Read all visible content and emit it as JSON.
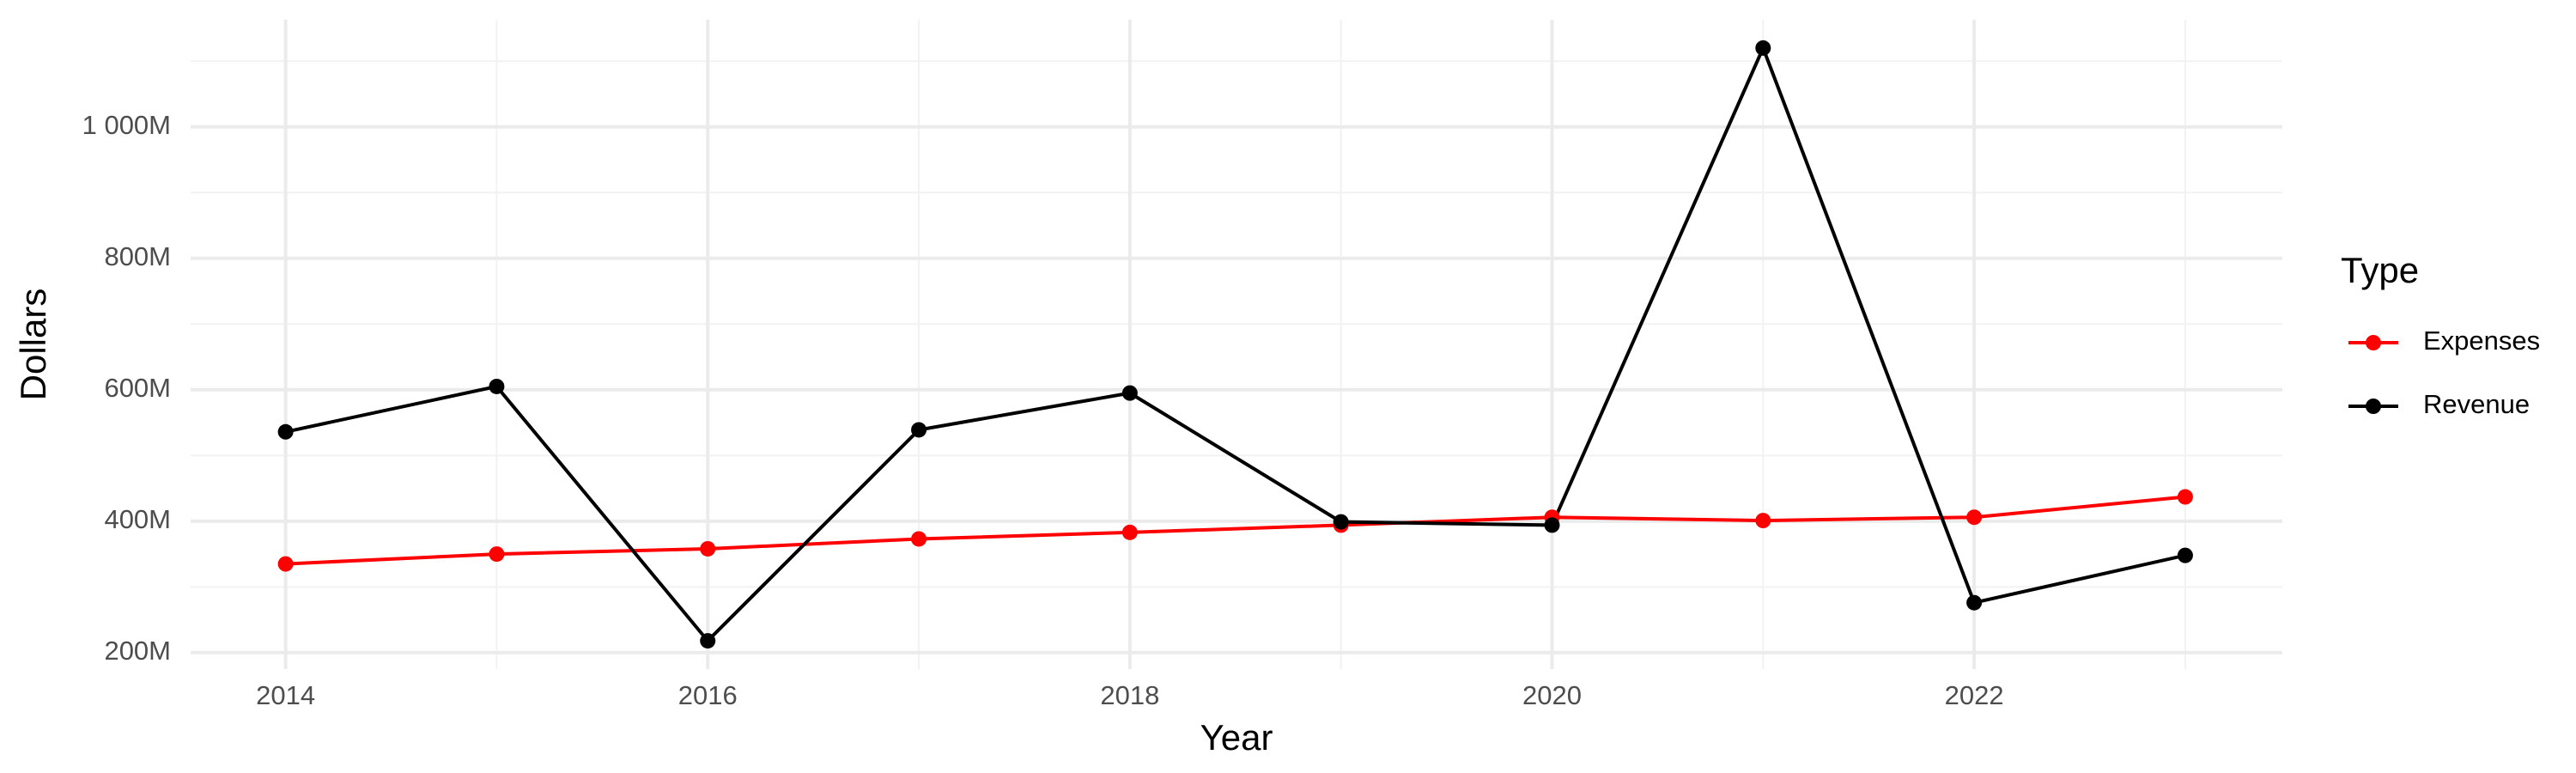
{
  "chart_data": {
    "type": "line",
    "x_label": "Year",
    "y_label": "Dollars",
    "legend_title": "Type",
    "x": [
      2014,
      2015,
      2016,
      2017,
      2018,
      2019,
      2020,
      2021,
      2022,
      2023
    ],
    "series": [
      {
        "name": "Expenses",
        "color": "#ff0000",
        "values": [
          335000000,
          350000000,
          358000000,
          373000000,
          383000000,
          394000000,
          406000000,
          401000000,
          406000000,
          437000000
        ]
      },
      {
        "name": "Revenue",
        "color": "#000000",
        "values": [
          536000000,
          605000000,
          218000000,
          539000000,
          595000000,
          399000000,
          394000000,
          1120000000,
          276000000,
          348000000
        ]
      }
    ],
    "xlim": [
      2013.55,
      2023.46
    ],
    "xticks": [
      2014,
      2016,
      2018,
      2020,
      2022
    ],
    "ylim": [
      175000000,
      1163000000
    ],
    "yticks": [
      {
        "value": 200000000,
        "label": "200M"
      },
      {
        "value": 400000000,
        "label": "400M"
      },
      {
        "value": 600000000,
        "label": "600M"
      },
      {
        "value": 800000000,
        "label": "800M"
      },
      {
        "value": 1000000000,
        "label": "1 000M"
      }
    ],
    "grid": true,
    "legend": "right"
  }
}
